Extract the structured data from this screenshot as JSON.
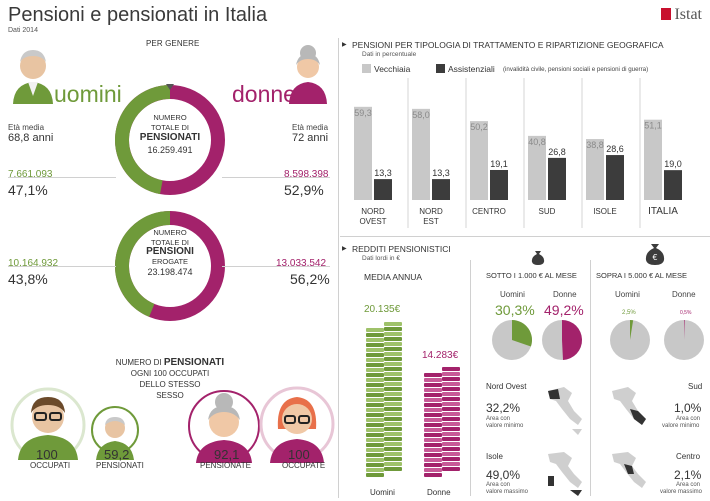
{
  "header": {
    "title": "Pensioni e pensionati in Italia",
    "subtitle": "Dati 2014",
    "logo": "Istat"
  },
  "left": {
    "per_genere": "PER GENERE",
    "uomini_label": "uomini",
    "donne_label": "donne",
    "eta_media_u_label": "Età media",
    "eta_media_u": "68,8 anni",
    "eta_media_d_label": "Età media",
    "eta_media_d": "72 anni",
    "pensionati_u_num": "7.661.093",
    "pensionati_u_pct": "47,1%",
    "pensionati_d_num": "8.598.398",
    "pensionati_d_pct": "52,9%",
    "donut1_l1": "NUMERO",
    "donut1_l2": "TOTALE DI",
    "donut1_l3": "PENSIONATI",
    "donut1_value": "16.259.491",
    "pensioni_u_num": "10.164.932",
    "pensioni_u_pct": "43,8%",
    "pensioni_d_num": "13.033.542",
    "pensioni_d_pct": "56,2%",
    "donut2_l1": "NUMERO",
    "donut2_l2": "TOTALE DI",
    "donut2_l3": "PENSIONI",
    "donut2_l4": "EROGATE",
    "donut2_value": "23.198.474",
    "per100_l1a": "NUMERO DI",
    "per100_l1b": "PENSIONATI",
    "per100_l2": "OGNI 100 OCCUPATI",
    "per100_l3": "DELLO STESSO",
    "per100_l4": "SESSO",
    "occ_m_value": "100",
    "occ_m_label": "OCCUPATI",
    "pens_m_value": "59,2",
    "pens_m_label": "PENSIONATI",
    "pens_f_value": "92,1",
    "pens_f_label": "PENSIONATE",
    "occ_f_value": "100",
    "occ_f_label": "OCCUPATE"
  },
  "right_top": {
    "title": "PENSIONI PER TIPOLOGIA DI TRATTAMENTO E RIPARTIZIONE GEOGRAFICA",
    "note": "Dati in percentuale",
    "legend_vecchiaia": "Vecchiaia",
    "legend_assistenziali": "Assistenziali",
    "legend_note": "(invalidità civile, pensioni sociali e pensioni di guerra)"
  },
  "right_bottom": {
    "title": "REDDITI PENSIONISTICI",
    "note": "Dati lordi in €",
    "media_annua": "MEDIA ANNUA",
    "uomini_value": "20.135€",
    "donne_value": "14.283€",
    "uomini_label": "Uomini",
    "donne_label": "Donne",
    "sotto_title": "SOTTO I 1.000 € AL MESE",
    "sopra_title": "SOPRA I 5.000 € AL MESE",
    "sotto_u_label": "Uomini",
    "sotto_d_label": "Donne",
    "sotto_u": "30,3%",
    "sotto_d": "49,2%",
    "sopra_u_label": "Uomini",
    "sopra_d_label": "Donne",
    "sopra_u": "2,5%",
    "sopra_d": "0,5%",
    "no_name": "Nord Ovest",
    "no_value": "32,2%",
    "no_desc1": "Area con",
    "no_desc2": "valore minimo",
    "sud_name": "Sud",
    "sud_value": "1,0%",
    "sud_desc1": "Area con",
    "sud_desc2": "valore minimo",
    "isole_name": "Isole",
    "isole_value": "49,0%",
    "isole_desc1": "Area con",
    "isole_desc2": "valore massimo",
    "centro_name": "Centro",
    "centro_value": "2,1%",
    "centro_desc1": "Area con",
    "centro_desc2": "valore massimo"
  },
  "colors": {
    "green": "#6f9a3a",
    "purple": "#a3226b",
    "light_gray": "#c8c8c8",
    "dark_gray": "#3c3c3c"
  },
  "chart_data": [
    {
      "type": "bar",
      "categories": [
        "NORD OVEST",
        "NORD EST",
        "CENTRO",
        "SUD",
        "ISOLE",
        "ITALIA"
      ],
      "series": [
        {
          "name": "Vecchiaia",
          "values": [
            59.3,
            58.0,
            50.2,
            40.8,
            38.8,
            51.1
          ]
        },
        {
          "name": "Assistenziali",
          "values": [
            13.3,
            13.3,
            19.1,
            26.8,
            28.6,
            19.0
          ]
        }
      ],
      "value_labels": [
        [
          "59,3",
          "58,0",
          "50,2",
          "40,8",
          "38,8",
          "51,1"
        ],
        [
          "13,3",
          "13,3",
          "19,1",
          "26,8",
          "28,6",
          "19,0"
        ]
      ],
      "ylim": [
        0,
        70
      ]
    },
    {
      "type": "pie",
      "categories": [
        "Uomini",
        "Donne"
      ],
      "values": [
        47.1,
        52.9
      ]
    },
    {
      "type": "pie",
      "categories": [
        "Uomini",
        "Donne"
      ],
      "values": [
        43.8,
        56.2
      ]
    },
    {
      "type": "pie",
      "categories": [
        "Uomini",
        "Donne"
      ],
      "values": [
        30.3,
        49.2
      ]
    },
    {
      "type": "pie",
      "categories": [
        "Uomini",
        "Donne"
      ],
      "values": [
        2.5,
        0.5
      ]
    },
    {
      "type": "bar",
      "categories": [
        "Uomini",
        "Donne"
      ],
      "values": [
        20135,
        14283
      ]
    }
  ]
}
